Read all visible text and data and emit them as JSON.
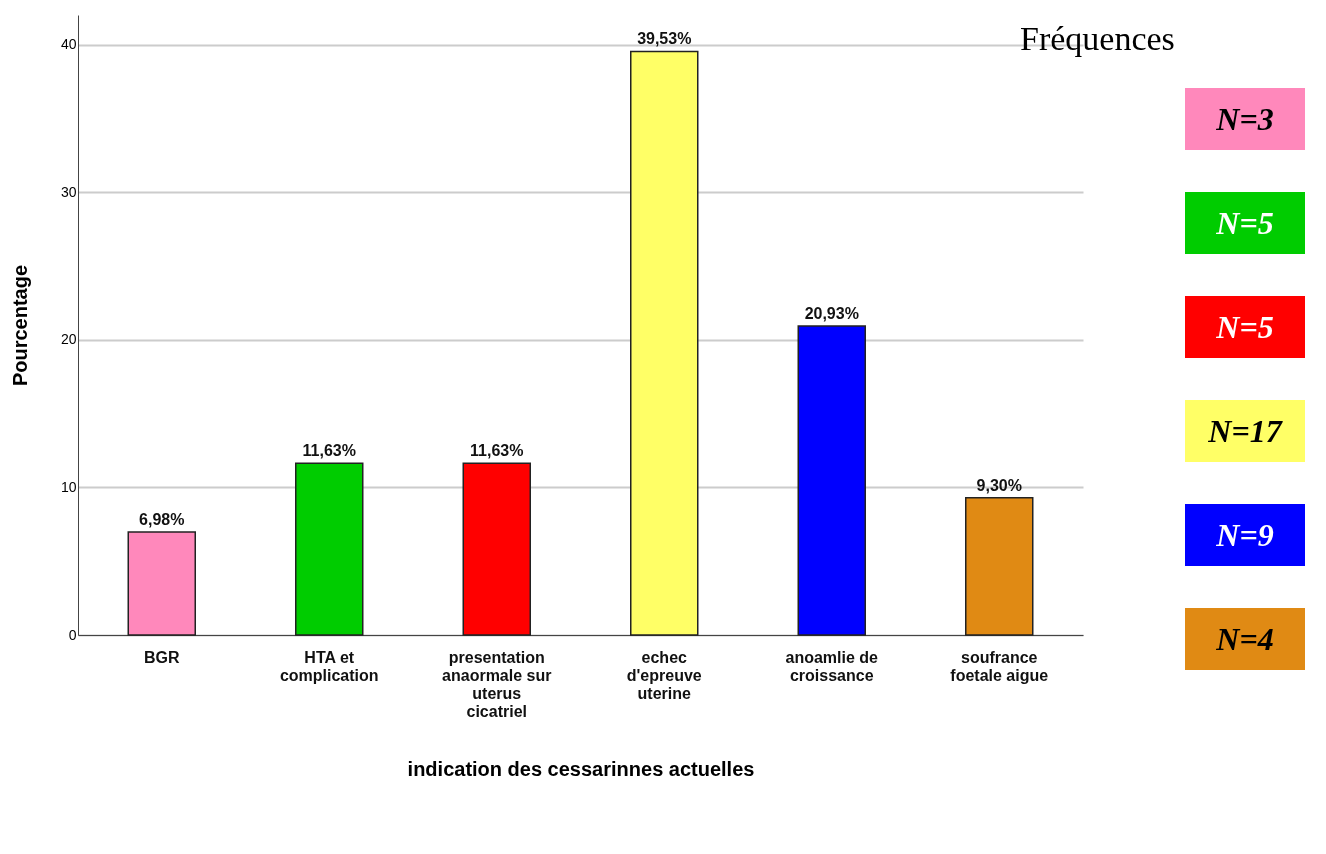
{
  "chart_data": {
    "type": "bar",
    "xlabel": "indication des cessarinnes actuelles",
    "ylabel": "Pourcentage",
    "categories": [
      "BGR",
      "HTA et complication",
      "presentation anaormale sur uterus cicatriel",
      "echec d'epreuve uterine",
      "anoamlie de croissance",
      "soufrance foetale aigue"
    ],
    "values": [
      6.98,
      11.63,
      11.63,
      39.53,
      20.93,
      9.3
    ],
    "value_labels": [
      "6,98%",
      "11,63%",
      "11,63%",
      "39,53%",
      "20,93%",
      "9,30%"
    ],
    "colors": [
      "#ff88bb",
      "#00cc00",
      "#ff0000",
      "#ffff66",
      "#0000ff",
      "#e08a14"
    ],
    "ylim": [
      0,
      42
    ],
    "yticks": [
      0,
      10,
      20,
      30,
      40
    ],
    "grid": "y",
    "annotations": [
      "Fréquences",
      "N=3",
      "N=5",
      "N=5",
      "N=17",
      "N=9",
      "N=4"
    ]
  }
}
